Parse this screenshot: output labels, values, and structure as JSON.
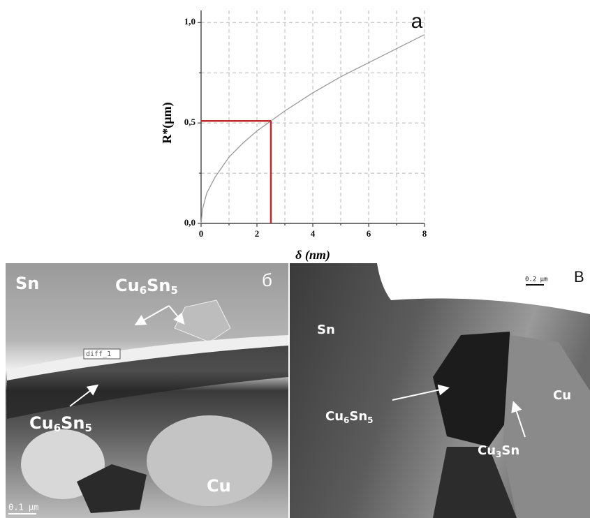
{
  "chart_data": {
    "type": "line",
    "panel_label": "а",
    "xlabel": "δ (nm)",
    "ylabel": "R*(µm)",
    "x": [
      0,
      0.05,
      0.2,
      0.5,
      1,
      1.5,
      2,
      2.5,
      3,
      4,
      5,
      6,
      7,
      8
    ],
    "series": [
      {
        "color": "#9a9a9a",
        "values": [
          0,
          0.07,
          0.15,
          0.23,
          0.33,
          0.4,
          0.46,
          0.51,
          0.56,
          0.65,
          0.73,
          0.8,
          0.87,
          0.94
        ]
      }
    ],
    "marker": {
      "x": 2.5,
      "y": 0.51,
      "color": "#c0282d"
    },
    "xlim": [
      0,
      8
    ],
    "ylim": [
      0,
      1.06
    ],
    "xticks": [
      0,
      2,
      4,
      6,
      8
    ],
    "yticks": [
      {
        "value": 0,
        "label": "0,0"
      },
      {
        "value": 0.5,
        "label": "0,5"
      },
      {
        "value": 1,
        "label": "1,0"
      }
    ],
    "x_minor_ticks": [
      1,
      3,
      5,
      7
    ],
    "y_minor_ticks": [
      0.25,
      0.75
    ],
    "grid": true
  },
  "micrographs": [
    {
      "label": "б",
      "scale_bar": "0.1 µm",
      "sn": "Sn",
      "cu": "Cu",
      "top_phase": [
        "Cu",
        "6",
        "Sn",
        "5"
      ],
      "bottom_phase": [
        "Cu",
        "6",
        "Sn",
        "5"
      ],
      "tag": "diff_1"
    },
    {
      "label": "В",
      "scale_bar": "0.2 µm",
      "sn": "Sn",
      "cu": "Cu",
      "phase_a": [
        "Cu",
        "6",
        "Sn",
        "5"
      ],
      "phase_b": [
        "Cu",
        "3",
        "Sn"
      ]
    }
  ]
}
